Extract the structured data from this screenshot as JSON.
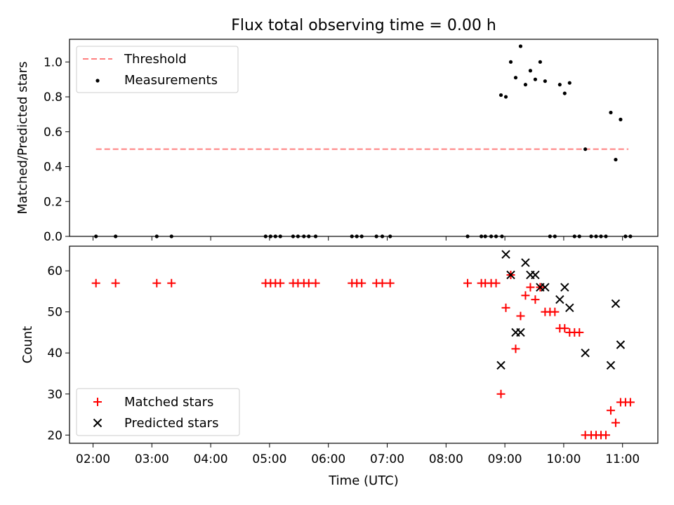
{
  "chart_data": [
    {
      "type": "scatter",
      "title": "Flux total observing time = 0.00 h",
      "xlabel": "",
      "ylabel": "Matched/Predicted stars",
      "xlim": [
        "01:36",
        "11:36"
      ],
      "ylim": [
        0,
        1.13
      ],
      "yticks": [
        "0.0",
        "0.2",
        "0.4",
        "0.6",
        "0.8",
        "1.0"
      ],
      "legend_position": "top-left",
      "threshold": {
        "name": "Threshold",
        "color": "#ff7f7f",
        "x": [
          "02:03",
          "11:06"
        ],
        "y": [
          0.5,
          0.5
        ]
      },
      "series": [
        {
          "name": "Measurements",
          "color": "#000000",
          "points": [
            [
              "02:03",
              0
            ],
            [
              "02:23",
              0
            ],
            [
              "03:05",
              0
            ],
            [
              "03:20",
              0
            ],
            [
              "04:56",
              0
            ],
            [
              "05:01",
              0
            ],
            [
              "05:06",
              0
            ],
            [
              "05:11",
              0
            ],
            [
              "05:24",
              0
            ],
            [
              "05:29",
              0
            ],
            [
              "05:35",
              0
            ],
            [
              "05:40",
              0
            ],
            [
              "05:47",
              0
            ],
            [
              "06:24",
              0
            ],
            [
              "06:29",
              0
            ],
            [
              "06:34",
              0
            ],
            [
              "06:49",
              0
            ],
            [
              "06:55",
              0
            ],
            [
              "07:03",
              0
            ],
            [
              "08:22",
              0
            ],
            [
              "08:36",
              0
            ],
            [
              "08:40",
              0
            ],
            [
              "08:46",
              0
            ],
            [
              "08:51",
              0
            ],
            [
              "08:57",
              0
            ],
            [
              "08:56",
              0.81
            ],
            [
              "09:01",
              0.8
            ],
            [
              "09:06",
              1.0
            ],
            [
              "09:11",
              0.91
            ],
            [
              "09:16",
              1.09
            ],
            [
              "09:21",
              0.87
            ],
            [
              "09:26",
              0.95
            ],
            [
              "09:31",
              0.9
            ],
            [
              "09:36",
              1.0
            ],
            [
              "09:41",
              0.89
            ],
            [
              "09:46",
              0
            ],
            [
              "09:51",
              0
            ],
            [
              "09:56",
              0.87
            ],
            [
              "10:01",
              0.82
            ],
            [
              "10:06",
              0.88
            ],
            [
              "10:11",
              0
            ],
            [
              "10:16",
              0
            ],
            [
              "10:22",
              0.5
            ],
            [
              "10:28",
              0
            ],
            [
              "10:33",
              0
            ],
            [
              "10:38",
              0
            ],
            [
              "10:43",
              0
            ],
            [
              "10:48",
              0.71
            ],
            [
              "10:53",
              0.44
            ],
            [
              "10:58",
              0.67
            ],
            [
              "11:03",
              0
            ],
            [
              "11:08",
              0
            ]
          ]
        }
      ]
    },
    {
      "type": "scatter",
      "title": "",
      "xlabel": "Time (UTC)",
      "ylabel": "Count",
      "xlim": [
        "01:36",
        "11:36"
      ],
      "ylim": [
        18,
        66
      ],
      "xticks": [
        "02:00",
        "03:00",
        "04:00",
        "05:00",
        "06:00",
        "07:00",
        "08:00",
        "09:00",
        "10:00",
        "11:00"
      ],
      "yticks": [
        "20",
        "30",
        "40",
        "50",
        "60"
      ],
      "legend_position": "bottom-left",
      "series": [
        {
          "name": "Matched stars",
          "color": "#ff0000",
          "marker": "+",
          "points": [
            [
              "02:03",
              57
            ],
            [
              "02:23",
              57
            ],
            [
              "03:05",
              57
            ],
            [
              "03:20",
              57
            ],
            [
              "04:56",
              57
            ],
            [
              "05:01",
              57
            ],
            [
              "05:06",
              57
            ],
            [
              "05:11",
              57
            ],
            [
              "05:24",
              57
            ],
            [
              "05:29",
              57
            ],
            [
              "05:35",
              57
            ],
            [
              "05:40",
              57
            ],
            [
              "05:47",
              57
            ],
            [
              "06:24",
              57
            ],
            [
              "06:29",
              57
            ],
            [
              "06:34",
              57
            ],
            [
              "06:49",
              57
            ],
            [
              "06:55",
              57
            ],
            [
              "07:03",
              57
            ],
            [
              "08:22",
              57
            ],
            [
              "08:36",
              57
            ],
            [
              "08:40",
              57
            ],
            [
              "08:46",
              57
            ],
            [
              "08:51",
              57
            ],
            [
              "08:56",
              30
            ],
            [
              "09:01",
              51
            ],
            [
              "09:06",
              59
            ],
            [
              "09:11",
              41
            ],
            [
              "09:16",
              49
            ],
            [
              "09:21",
              54
            ],
            [
              "09:26",
              56
            ],
            [
              "09:31",
              53
            ],
            [
              "09:36",
              56
            ],
            [
              "09:41",
              50
            ],
            [
              "09:46",
              50
            ],
            [
              "09:51",
              50
            ],
            [
              "09:56",
              46
            ],
            [
              "10:01",
              46
            ],
            [
              "10:06",
              45
            ],
            [
              "10:11",
              45
            ],
            [
              "10:16",
              45
            ],
            [
              "10:22",
              20
            ],
            [
              "10:28",
              20
            ],
            [
              "10:33",
              20
            ],
            [
              "10:38",
              20
            ],
            [
              "10:43",
              20
            ],
            [
              "10:48",
              26
            ],
            [
              "10:53",
              23
            ],
            [
              "10:58",
              28
            ],
            [
              "11:03",
              28
            ],
            [
              "11:08",
              28
            ]
          ]
        },
        {
          "name": "Predicted stars",
          "color": "#000000",
          "marker": "x",
          "points": [
            [
              "08:56",
              37
            ],
            [
              "09:01",
              64
            ],
            [
              "09:06",
              59
            ],
            [
              "09:11",
              45
            ],
            [
              "09:16",
              45
            ],
            [
              "09:21",
              62
            ],
            [
              "09:26",
              59
            ],
            [
              "09:31",
              59
            ],
            [
              "09:36",
              56
            ],
            [
              "09:41",
              56
            ],
            [
              "09:56",
              53
            ],
            [
              "10:01",
              56
            ],
            [
              "10:06",
              51
            ],
            [
              "10:22",
              40
            ],
            [
              "10:48",
              37
            ],
            [
              "10:53",
              52
            ],
            [
              "10:58",
              42
            ]
          ]
        }
      ]
    }
  ]
}
